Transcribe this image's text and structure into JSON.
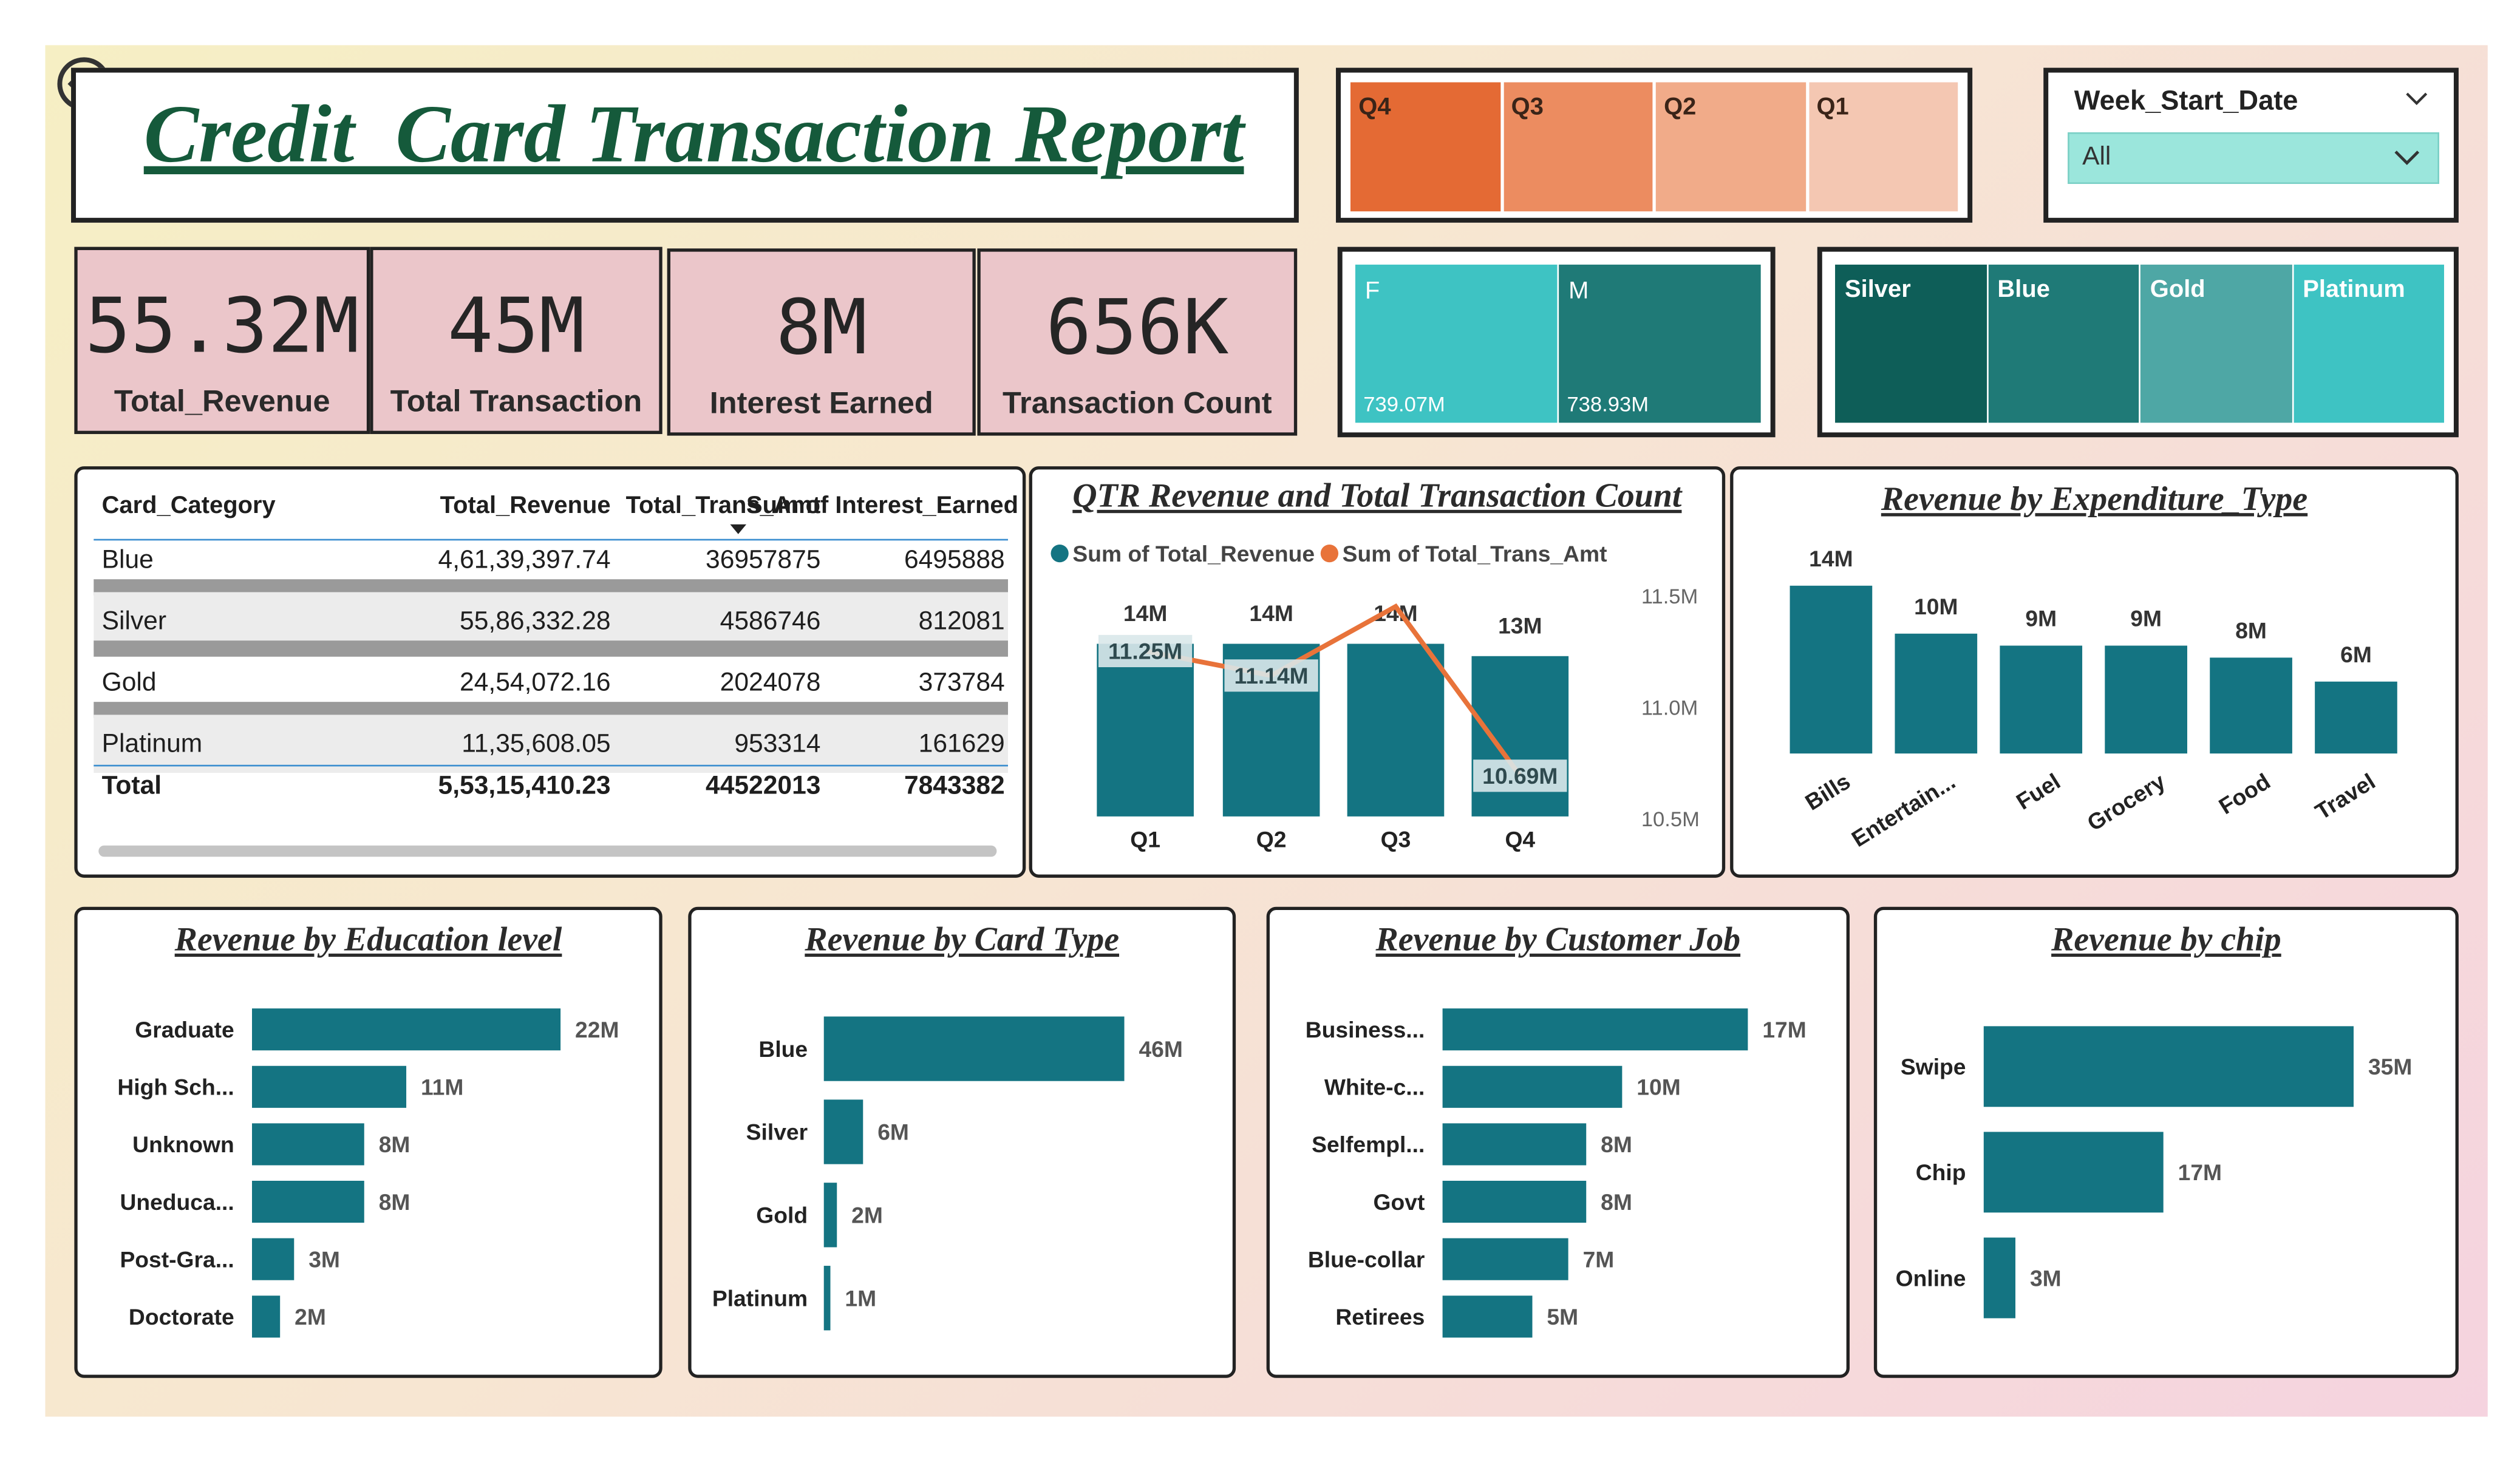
{
  "report_title": "Credit  Card Transaction Report",
  "quarter_slicer": [
    {
      "label": "Q4",
      "color": "#e46a34"
    },
    {
      "label": "Q3",
      "color": "#ec8c60"
    },
    {
      "label": "Q2",
      "color": "#f1ab89"
    },
    {
      "label": "Q1",
      "color": "#f4c7b2"
    }
  ],
  "week_filter": {
    "title": "Week_Start_Date",
    "value": "All"
  },
  "kpis": [
    {
      "value": "55.32M",
      "label": "Total_Revenue"
    },
    {
      "value": "45M",
      "label": "Total Transaction"
    },
    {
      "value": "8M",
      "label": "Interest Earned"
    },
    {
      "value": "656K",
      "label": "Transaction Count"
    }
  ],
  "gender_tiles": [
    {
      "label": "F",
      "value": "739.07M",
      "color": "#3ec3c3"
    },
    {
      "label": "M",
      "value": "738.93M",
      "color": "#1f7a77"
    }
  ],
  "card_tiles": [
    {
      "label": "Silver",
      "color": "#0e5e58"
    },
    {
      "label": "Blue",
      "color": "#1f7a77"
    },
    {
      "label": "Gold",
      "color": "#4ea7a5"
    },
    {
      "label": "Platinum",
      "color": "#3ec3c3"
    }
  ],
  "table": {
    "headers": [
      "Card_Category",
      "Total_Revenue",
      "Total_Trans_Amt",
      "Sum of Interest_Earned"
    ],
    "rows": [
      [
        "Blue",
        "4,61,39,397.74",
        "36957875",
        "6495888"
      ],
      [
        "Silver",
        "55,86,332.28",
        "4586746",
        "812081"
      ],
      [
        "Gold",
        "24,54,072.16",
        "2024078",
        "373784"
      ],
      [
        "Platinum",
        "11,35,608.05",
        "953314",
        "161629"
      ]
    ],
    "total": [
      "Total",
      "5,53,15,410.23",
      "44522013",
      "7843382"
    ]
  },
  "colors": {
    "bar": "#147482",
    "line": "#e8733a"
  },
  "charts": {
    "qtr": {
      "title": "QTR Revenue and Total Transaction Count",
      "legend": [
        "Sum of Total_Revenue",
        "Sum of Total_Trans_Amt"
      ],
      "right_ticks": [
        "11.5M",
        "11.0M",
        "10.5M"
      ]
    },
    "expenditure": {
      "title": "Revenue by Expenditure_Type"
    },
    "education": {
      "title": "Revenue by Education level"
    },
    "cardtype": {
      "title": "Revenue by Card Type"
    },
    "job": {
      "title": "Revenue by Customer Job"
    },
    "chip": {
      "title": "Revenue by chip"
    }
  },
  "chart_data": [
    {
      "type": "bar",
      "title": "QTR Revenue and Total Transaction Count",
      "categories": [
        "Q1",
        "Q2",
        "Q3",
        "Q4"
      ],
      "series": [
        {
          "name": "Sum of Total_Revenue",
          "values": [
            14,
            14,
            14,
            13
          ],
          "labels": [
            "14M",
            "14M",
            "14M",
            "13M"
          ]
        },
        {
          "name": "Sum of Total_Trans_Amt",
          "type": "line",
          "values": [
            11.25,
            11.14,
            11.45,
            10.69
          ],
          "labels": [
            "11.25M",
            "11.14M",
            "",
            "10.69M"
          ]
        }
      ],
      "y2lim": [
        10.5,
        11.5
      ]
    },
    {
      "type": "bar",
      "title": "Revenue by Expenditure_Type",
      "categories": [
        "Bills",
        "Entertain...",
        "Fuel",
        "Grocery",
        "Food",
        "Travel"
      ],
      "values": [
        14,
        10,
        9,
        9,
        8,
        6
      ],
      "labels": [
        "14M",
        "10M",
        "9M",
        "9M",
        "8M",
        "6M"
      ]
    },
    {
      "type": "bar",
      "title": "Revenue by Education level",
      "categories": [
        "Graduate",
        "High Sch...",
        "Unknown",
        "Uneduca...",
        "Post-Gra...",
        "Doctorate"
      ],
      "values": [
        22,
        11,
        8,
        8,
        3,
        2
      ],
      "labels": [
        "22M",
        "11M",
        "8M",
        "8M",
        "3M",
        "2M"
      ]
    },
    {
      "type": "bar",
      "title": "Revenue by Card Type",
      "categories": [
        "Blue",
        "Silver",
        "Gold",
        "Platinum"
      ],
      "values": [
        46,
        6,
        2,
        1
      ],
      "labels": [
        "46M",
        "6M",
        "2M",
        "1M"
      ]
    },
    {
      "type": "bar",
      "title": "Revenue by Customer Job",
      "categories": [
        "Business...",
        "White-c...",
        "Selfempl...",
        "Govt",
        "Blue-collar",
        "Retirees"
      ],
      "values": [
        17,
        10,
        8,
        8,
        7,
        5
      ],
      "labels": [
        "17M",
        "10M",
        "8M",
        "8M",
        "7M",
        "5M"
      ]
    },
    {
      "type": "bar",
      "title": "Revenue by chip",
      "categories": [
        "Swipe",
        "Chip",
        "Online"
      ],
      "values": [
        35,
        17,
        3
      ],
      "labels": [
        "35M",
        "17M",
        "3M"
      ]
    }
  ]
}
